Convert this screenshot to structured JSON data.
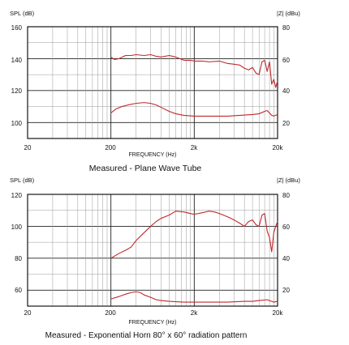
{
  "chart_data": [
    {
      "type": "line",
      "title": "Measured - Plane Wave Tube",
      "xlabel": "FREQUENCY (Hz)",
      "ylabel": "SPL (dB)",
      "ylabel_right": "|Z| (dBu)",
      "x_scale": "log",
      "xlim": [
        20,
        20000
      ],
      "x_ticks": [
        "20",
        "200",
        "2k",
        "20k"
      ],
      "ylim": [
        90,
        160
      ],
      "y_ticks": [
        "160",
        "140",
        "120",
        "100"
      ],
      "y_right_ticks": [
        "80",
        "60",
        "40",
        "20"
      ],
      "grid": true,
      "line_color": "#c0282d",
      "series": [
        {
          "x": [
            200,
            220,
            250,
            300,
            350,
            400,
            500,
            600,
            700,
            800,
            1000,
            1200,
            1500,
            1800,
            2000,
            2500,
            3000,
            4000,
            5000,
            6000,
            7000,
            8000,
            9000,
            10000,
            11000,
            12000,
            13000,
            14000,
            15000,
            16000,
            17000,
            18000,
            19000,
            20000
          ],
          "values": [
            141,
            139.5,
            140,
            142,
            142,
            142.5,
            142,
            142.5,
            141.5,
            141,
            142,
            141,
            139,
            139,
            138.5,
            138.5,
            138,
            138.5,
            137,
            136.5,
            136,
            134,
            133,
            134.5,
            131,
            130,
            138,
            139,
            132,
            138,
            124,
            127,
            122,
            126
          ]
        },
        {
          "x": [
            200,
            230,
            270,
            320,
            400,
            500,
            600,
            700,
            800,
            1000,
            1200,
            1500,
            2000,
            3000,
            5000,
            7000,
            10000,
            12000,
            14000,
            15000,
            16000,
            17000,
            18000,
            20000
          ],
          "values": [
            106,
            108.5,
            110,
            111,
            112,
            112.5,
            112,
            111,
            109.5,
            107,
            105.5,
            104.5,
            104,
            104,
            104,
            104.5,
            105,
            105.5,
            107,
            107.5,
            106,
            104.5,
            104,
            105
          ]
        }
      ]
    },
    {
      "type": "line",
      "title": "Measured - Exponential Horn 80° x 60° radiation pattern",
      "xlabel": "FREQUENCY (Hz)",
      "ylabel": "SPL (dB)",
      "ylabel_right": "|Z| (dBu)",
      "x_scale": "log",
      "xlim": [
        20,
        20000
      ],
      "x_ticks": [
        "20",
        "200",
        "2k",
        "20k"
      ],
      "ylim": [
        50,
        120
      ],
      "y_ticks": [
        "120",
        "100",
        "80",
        "60"
      ],
      "y_right_ticks": [
        "80",
        "60",
        "40",
        "20"
      ],
      "grid": true,
      "line_color": "#c0282d",
      "series": [
        {
          "x": [
            200,
            250,
            300,
            350,
            400,
            500,
            600,
            700,
            800,
            1000,
            1200,
            1500,
            1800,
            2000,
            2500,
            3000,
            3500,
            4000,
            5000,
            6000,
            7000,
            8000,
            9000,
            10000,
            11000,
            12000,
            13000,
            14000,
            15000,
            16000,
            17000,
            18000,
            19000,
            20000
          ],
          "values": [
            80,
            83,
            85,
            87,
            91,
            96,
            100,
            103,
            105,
            107,
            109.5,
            109,
            108,
            107.5,
            108.5,
            109.5,
            109,
            108,
            106,
            104,
            102,
            100,
            103,
            104,
            101,
            100,
            107,
            108,
            97,
            93,
            84,
            96,
            100,
            103
          ]
        },
        {
          "x": [
            200,
            250,
            300,
            350,
            400,
            450,
            500,
            600,
            700,
            800,
            1000,
            1500,
            2000,
            3000,
            5000,
            8000,
            10000,
            12000,
            15000,
            17000,
            18000,
            20000
          ],
          "values": [
            54.5,
            56,
            57.5,
            58.5,
            59,
            58.5,
            57,
            55.5,
            54,
            53.5,
            53,
            52.5,
            52.5,
            52.5,
            52.5,
            53,
            53,
            53.5,
            54,
            53,
            52.5,
            53
          ]
        }
      ]
    }
  ]
}
